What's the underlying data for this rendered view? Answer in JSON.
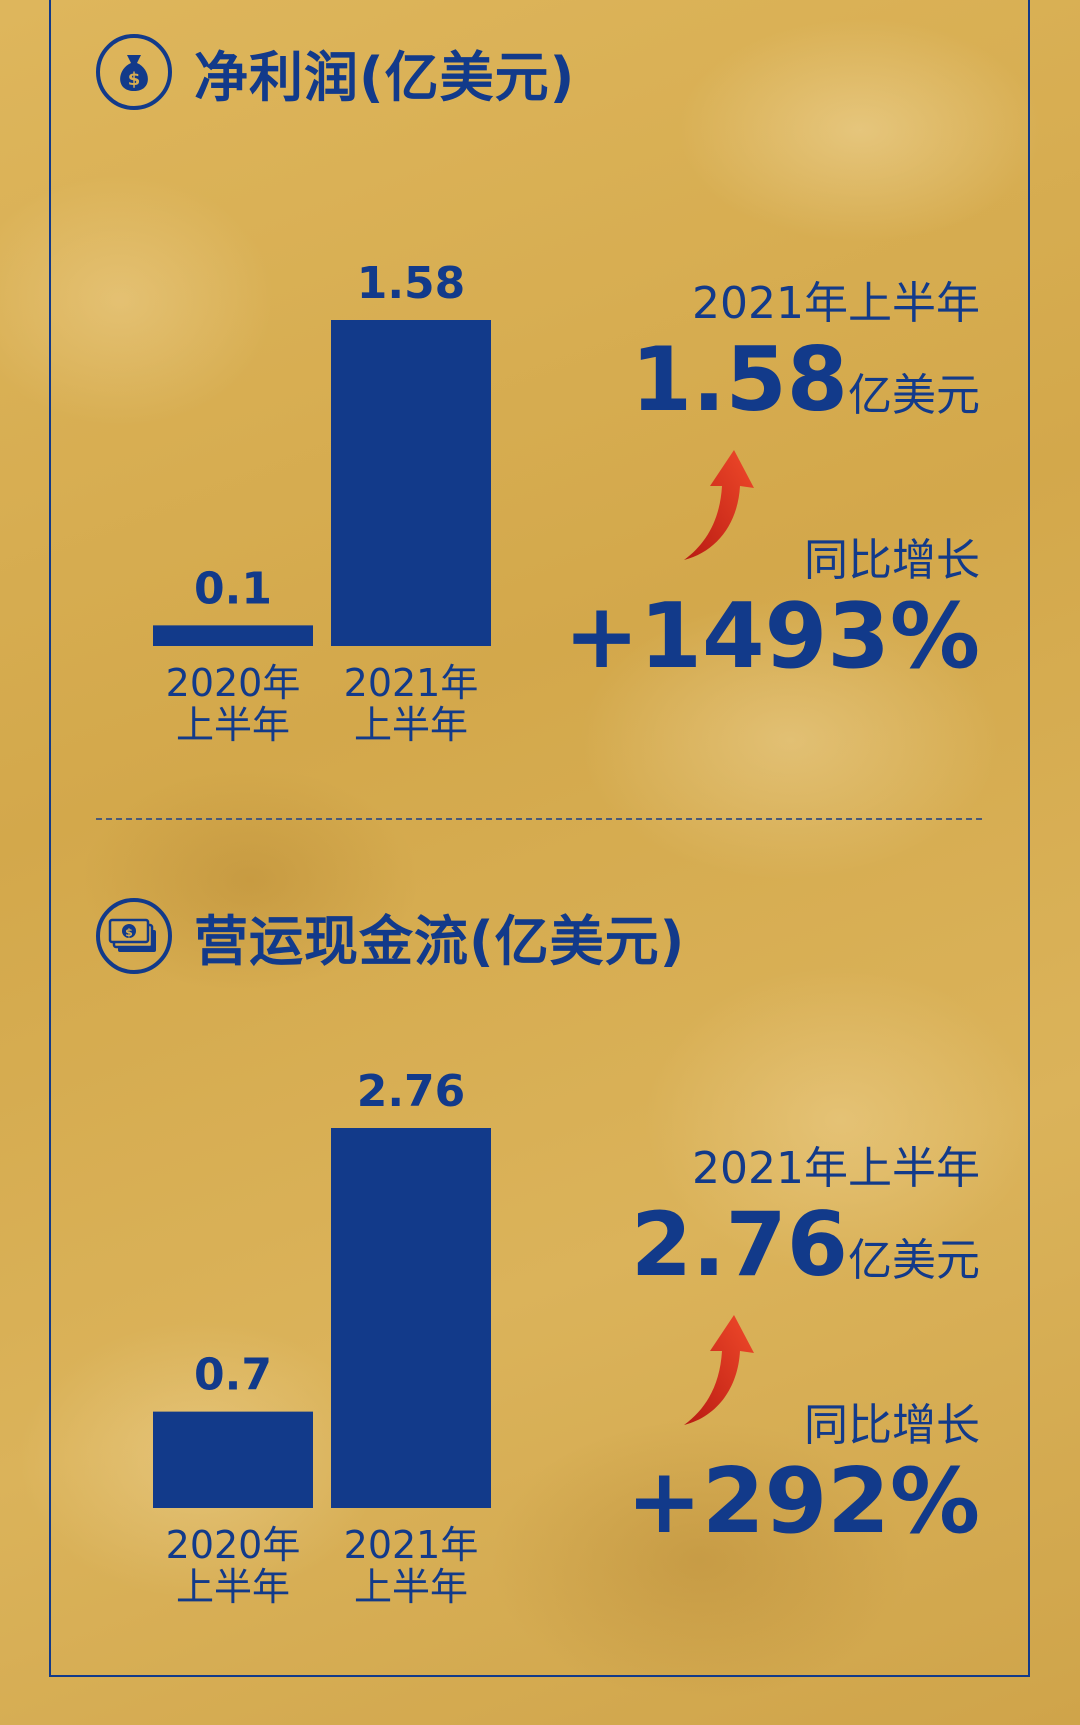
{
  "colors": {
    "bar": "#123a8a",
    "text": "#123a8a",
    "arrow": "#d8321f",
    "background": "#d7ad52"
  },
  "charts": [
    {
      "title": "净利润(亿美元)",
      "icon": "money-bag-icon",
      "period": "2021年上半年",
      "value": "1.58",
      "unit": "亿美元",
      "growth_label": "同比增长",
      "growth_value": "+1493%"
    },
    {
      "title": "营运现金流(亿美元)",
      "icon": "cash-stack-icon",
      "period": "2021年上半年",
      "value": "2.76",
      "unit": "亿美元",
      "growth_label": "同比增长",
      "growth_value": "+292%"
    }
  ],
  "chart_data": [
    {
      "type": "bar",
      "title": "净利润(亿美元)",
      "categories": [
        [
          "2020年",
          "上半年"
        ],
        [
          "2021年",
          "上半年"
        ]
      ],
      "values": [
        0.1,
        1.58
      ],
      "value_labels": [
        "0.1",
        "1.58"
      ],
      "ylim": [
        0,
        1.58
      ],
      "grid": false
    },
    {
      "type": "bar",
      "title": "营运现金流(亿美元)",
      "categories": [
        [
          "2020年",
          "上半年"
        ],
        [
          "2021年",
          "上半年"
        ]
      ],
      "values": [
        0.7,
        2.76
      ],
      "value_labels": [
        "0.7",
        "2.76"
      ],
      "ylim": [
        0,
        2.76
      ],
      "grid": false
    }
  ]
}
